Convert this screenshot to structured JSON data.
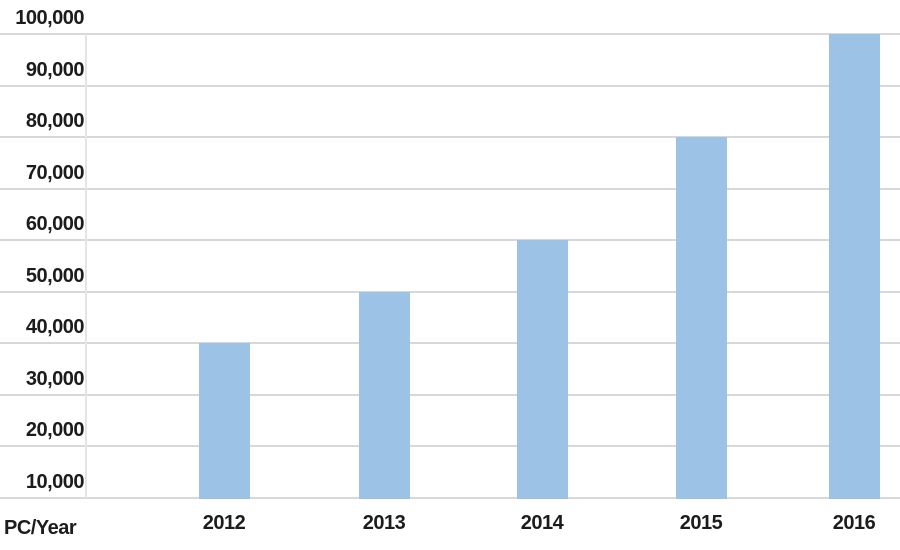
{
  "chart_data": {
    "type": "bar",
    "title": "",
    "categories": [
      "2012",
      "2013",
      "2014",
      "2015",
      "2016"
    ],
    "values": [
      40000,
      50000,
      60000,
      80000,
      100000
    ],
    "xlabel": "PC/Year",
    "ylabel": "",
    "ylim": [
      10000,
      100000
    ],
    "yticks": [
      10000,
      20000,
      30000,
      40000,
      50000,
      60000,
      70000,
      80000,
      90000,
      100000
    ],
    "ytick_labels": [
      "10,000",
      "20,000",
      "30,000",
      "40,000",
      "50,000",
      "60,000",
      "70,000",
      "80,000",
      "90,000",
      "100,000"
    ],
    "grid": "horizontal",
    "legend": "none",
    "colors": {
      "bar": "#9CC2E5",
      "gridline": "#D8D8D8",
      "axis_line": "#E4E4E4",
      "text": "#1C1C1C",
      "background": "#FFFFFF"
    }
  }
}
